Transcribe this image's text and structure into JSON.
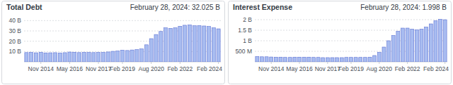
{
  "chart_data": [
    {
      "type": "bar",
      "title": "Total Debt",
      "subtitle": "February 28, 2024: 32.025 B",
      "categories": [
        null,
        null,
        null,
        "Nov 2014",
        null,
        null,
        null,
        null,
        null,
        "May 2016",
        null,
        null,
        null,
        null,
        null,
        "Nov 2017",
        null,
        null,
        null,
        null,
        "Feb 2019",
        null,
        null,
        null,
        null,
        null,
        "Aug 2020",
        null,
        null,
        null,
        null,
        null,
        "Feb 2022",
        null,
        null,
        null,
        null,
        null,
        null,
        null,
        "Feb 2024"
      ],
      "values": [
        9.0,
        9.2,
        8.8,
        9.2,
        8.7,
        8.8,
        8.9,
        8.6,
        8.9,
        9.5,
        9.3,
        9.0,
        9.2,
        9.1,
        9.0,
        9.1,
        9.2,
        9.6,
        10.2,
        10.5,
        11.3,
        11.0,
        11.5,
        11.9,
        12.5,
        16.5,
        22.5,
        26.5,
        29.5,
        33.0,
        32.5,
        33.0,
        34.5,
        35.5,
        35.8,
        35.0,
        35.2,
        34.8,
        34.3,
        33.0,
        32.025
      ],
      "color": "#a8bcf0",
      "ylim": [
        0,
        45
      ],
      "yticks": [
        {
          "value": 10,
          "label": "10 B"
        },
        {
          "value": 20,
          "label": "20 B"
        },
        {
          "value": 30,
          "label": "30 B"
        },
        {
          "value": 40,
          "label": "40 B"
        }
      ],
      "grid": true
    },
    {
      "type": "bar",
      "title": "Interest Expense",
      "subtitle": "February 28, 2024: 1.998 B",
      "categories": [
        null,
        null,
        null,
        "Nov 2014",
        null,
        null,
        null,
        null,
        null,
        "May 2016",
        null,
        null,
        null,
        null,
        null,
        "Nov 2017",
        null,
        null,
        null,
        null,
        "Feb 2019",
        null,
        null,
        null,
        null,
        null,
        "Aug 2020",
        null,
        null,
        null,
        null,
        null,
        "Feb 2022",
        null,
        null,
        null,
        null,
        null,
        null,
        null,
        "Feb 2024"
      ],
      "values": [
        0.25,
        0.24,
        0.24,
        0.23,
        0.22,
        0.22,
        0.21,
        0.21,
        0.22,
        0.22,
        0.22,
        0.22,
        0.21,
        0.21,
        0.2,
        0.2,
        0.2,
        0.2,
        0.2,
        0.21,
        0.21,
        0.21,
        0.21,
        0.21,
        0.22,
        0.3,
        0.45,
        0.7,
        1.0,
        1.25,
        1.45,
        1.6,
        1.6,
        1.55,
        1.52,
        1.55,
        1.65,
        1.8,
        1.95,
        2.02,
        1.998
      ],
      "color": "#a8bcf0",
      "ylim": [
        0,
        2.2
      ],
      "yticks": [
        {
          "value": 0.5,
          "label": "500 M"
        },
        {
          "value": 1,
          "label": "1 B"
        },
        {
          "value": 1.5,
          "label": "1.5 B"
        },
        {
          "value": 2,
          "label": "2 B"
        }
      ],
      "grid": true
    }
  ]
}
